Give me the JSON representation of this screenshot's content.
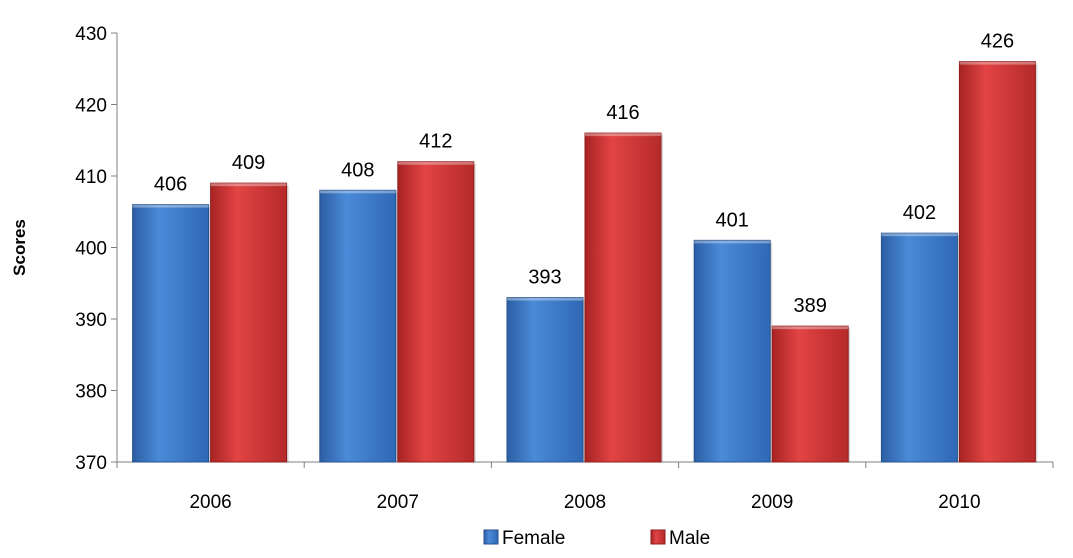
{
  "chart_data": {
    "type": "bar",
    "categories": [
      "2006",
      "2007",
      "2008",
      "2009",
      "2010"
    ],
    "series": [
      {
        "name": "Female",
        "values": [
          406,
          408,
          393,
          401,
          402
        ],
        "color": "#3a78c9"
      },
      {
        "name": "Male",
        "values": [
          409,
          412,
          416,
          389,
          426
        ],
        "color": "#d63535"
      }
    ],
    "title": "",
    "xlabel": "",
    "ylabel": "Scores",
    "ylim": [
      370,
      430
    ],
    "yticks": [
      370,
      380,
      390,
      400,
      410,
      420,
      430
    ],
    "grid": false,
    "legend_position": "bottom"
  }
}
